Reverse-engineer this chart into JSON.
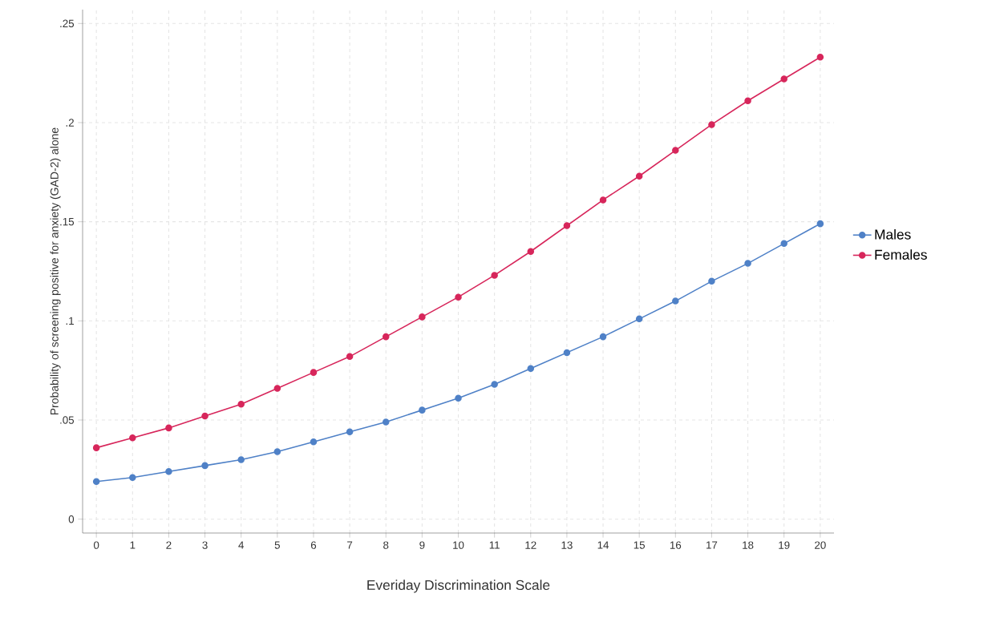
{
  "chart_data": {
    "type": "line",
    "xlabel": "Everiday Discrimination Scale",
    "ylabel": "Probability of screening positive for anxiety (GAD-2) alone",
    "x": [
      0,
      1,
      2,
      3,
      4,
      5,
      6,
      7,
      8,
      9,
      10,
      11,
      12,
      13,
      14,
      15,
      16,
      17,
      18,
      19,
      20
    ],
    "series": [
      {
        "name": "Males",
        "color": "#4f81c7",
        "values": [
          0.019,
          0.021,
          0.024,
          0.027,
          0.03,
          0.034,
          0.039,
          0.044,
          0.049,
          0.055,
          0.061,
          0.068,
          0.076,
          0.084,
          0.092,
          0.101,
          0.11,
          0.12,
          0.129,
          0.139,
          0.149
        ]
      },
      {
        "name": "Females",
        "color": "#d7265b",
        "values": [
          0.036,
          0.041,
          0.046,
          0.052,
          0.058,
          0.066,
          0.074,
          0.082,
          0.092,
          0.102,
          0.112,
          0.123,
          0.135,
          0.148,
          0.161,
          0.173,
          0.186,
          0.199,
          0.211,
          0.222,
          0.233
        ]
      }
    ],
    "xlim": [
      -0.38,
      20.38
    ],
    "ylim": [
      -0.007,
      0.257
    ],
    "xticks": [
      0,
      1,
      2,
      3,
      4,
      5,
      6,
      7,
      8,
      9,
      10,
      11,
      12,
      13,
      14,
      15,
      16,
      17,
      18,
      19,
      20
    ],
    "yticks": [
      0,
      {
        "value": 0.05,
        "label": ".05"
      },
      {
        "value": 0.1,
        "label": ".1"
      },
      {
        "value": 0.15,
        "label": ".15"
      },
      {
        "value": 0.2,
        "label": ".2"
      },
      {
        "value": 0.25,
        "label": ".25"
      }
    ],
    "grid": true,
    "legend": "right",
    "marker": "circle",
    "line_style": "solid"
  }
}
